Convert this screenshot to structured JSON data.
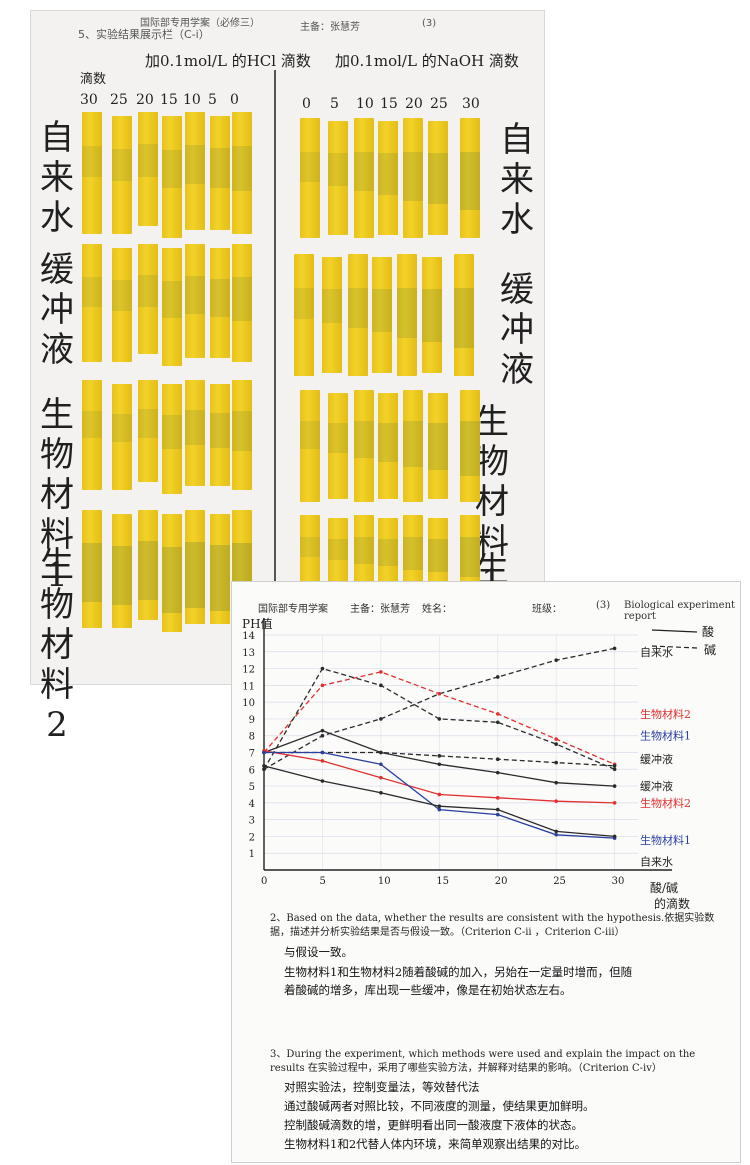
{
  "photo1": {
    "header": "国际部专用学案（必修三）",
    "header_author": "主备：张慧芳",
    "header_num": "(3)",
    "section": "5、实验结果展示栏（C-i）",
    "acid_title": "加0.1mol/L 的HCl 滴数",
    "base_title": "加0.1mol/L 的NaOH 滴数",
    "col_head": "滴数",
    "acid_ticks": [
      "30",
      "25",
      "20",
      "15",
      "10",
      "5",
      "0"
    ],
    "base_ticks": [
      "0",
      "5",
      "10",
      "15",
      "20",
      "25",
      "30"
    ],
    "left_labels": [
      "自来水",
      "缓冲液",
      "生物材料1",
      "生物材料2"
    ],
    "right_labels": [
      "自来水",
      "缓冲液",
      "生物材料1",
      "生物"
    ]
  },
  "photo2": {
    "header": "国际部专用学案",
    "author": "主备：张慧芳",
    "name_label": "姓名：",
    "class_label": "班级：",
    "num": "(3)",
    "report": "Biological experiment report",
    "y_title": "PH值",
    "x_title_1": "酸/碱",
    "x_title_2": "的滴数",
    "legend_acid": "酸",
    "legend_base": "碱",
    "q2": "2、Based on the data, whether the results are consistent with the hypothesis.依据实验数据，描述并分析实验结果是否与假设一致。（Criterion C-ii ，Criterion C-iii）",
    "a2": [
      "与假设一致。",
      "生物材料1和生物材料2随着酸碱的加入，另始在一定量时增而，但随",
      "着酸碱的增多，库出现一些缓冲，像是在初始状态左右。"
    ],
    "q3": "3、During the experiment, which methods were used and explain the impact on the results 在实验过程中，采用了哪些实验方法，并解释对结果的影响。（Criterion C-iv）",
    "a3": [
      "对照实验法，控制变量法，等效替代法",
      "通过酸碱两者对照比较，不同液度的测量，使结果更加鲜明。",
      "控制酸碱滴数的增，更鲜明看出同一酸液度下液体的状态。",
      "生物材料1和2代替人体内环境，来简单观察出结果的对比。"
    ]
  },
  "chart_data": {
    "type": "line",
    "xlabel": "酸/碱的滴数",
    "ylabel": "PH值",
    "x": [
      0,
      5,
      10,
      15,
      20,
      25,
      30
    ],
    "xlim": [
      0,
      32
    ],
    "ylim": [
      0,
      14
    ],
    "yticks": [
      1,
      2,
      3,
      4,
      5,
      6,
      7,
      8,
      9,
      10,
      11,
      12,
      13,
      14
    ],
    "series": [
      {
        "name": "自来水",
        "kind": "base",
        "color": "#2b2b2b",
        "dash": true,
        "values": [
          6,
          8,
          9,
          10.5,
          11.5,
          12.5,
          13.2
        ]
      },
      {
        "name": "生物材料2",
        "kind": "base",
        "color": "#e03030",
        "dash": true,
        "values": [
          7,
          11,
          11.8,
          10.5,
          9.3,
          7.8,
          6.3
        ]
      },
      {
        "name": "生物材料1",
        "kind": "base",
        "color": "#2b2b2b",
        "dash": true,
        "values": [
          6,
          12,
          11,
          9,
          8.8,
          7.5,
          6
        ]
      },
      {
        "name": "缓冲液",
        "kind": "base",
        "color": "#2b2b2b",
        "dash": true,
        "values": [
          7,
          7,
          7,
          6.8,
          6.6,
          6.4,
          6.2
        ]
      },
      {
        "name": "缓冲液",
        "kind": "acid",
        "color": "#2b2b2b",
        "dash": false,
        "values": [
          7,
          8.3,
          7,
          6.3,
          5.8,
          5.2,
          5
        ]
      },
      {
        "name": "生物材料2",
        "kind": "acid",
        "color": "#e03030",
        "dash": false,
        "values": [
          7.1,
          6.5,
          5.5,
          4.5,
          4.3,
          4.1,
          4
        ]
      },
      {
        "name": "生物材料1",
        "kind": "acid",
        "color": "#2a3fa0",
        "dash": false,
        "values": [
          7,
          7,
          6.3,
          3.6,
          3.3,
          2.1,
          1.9
        ]
      },
      {
        "name": "自来水",
        "kind": "acid",
        "color": "#2b2b2b",
        "dash": false,
        "values": [
          6.2,
          5.3,
          4.6,
          3.8,
          3.6,
          2.3,
          2
        ]
      }
    ],
    "labels_right": [
      {
        "text": "生物材料2",
        "color": "#e03030",
        "y": 9.3
      },
      {
        "text": "生物材料1",
        "color": "#2a3fa0",
        "y": 8
      },
      {
        "text": "缓冲液",
        "color": "#1f1f1f",
        "y": 6.6
      },
      {
        "text": "缓冲液",
        "color": "#1f1f1f",
        "y": 5
      },
      {
        "text": "生物材料2",
        "color": "#e03030",
        "y": 4
      },
      {
        "text": "生物材料1",
        "color": "#2a3fa0",
        "y": 1.8
      },
      {
        "text": "自来水",
        "color": "#1f1f1f",
        "y": 0.5
      },
      {
        "text": "自来水",
        "color": "#1f1f1f",
        "y": 13
      }
    ]
  }
}
